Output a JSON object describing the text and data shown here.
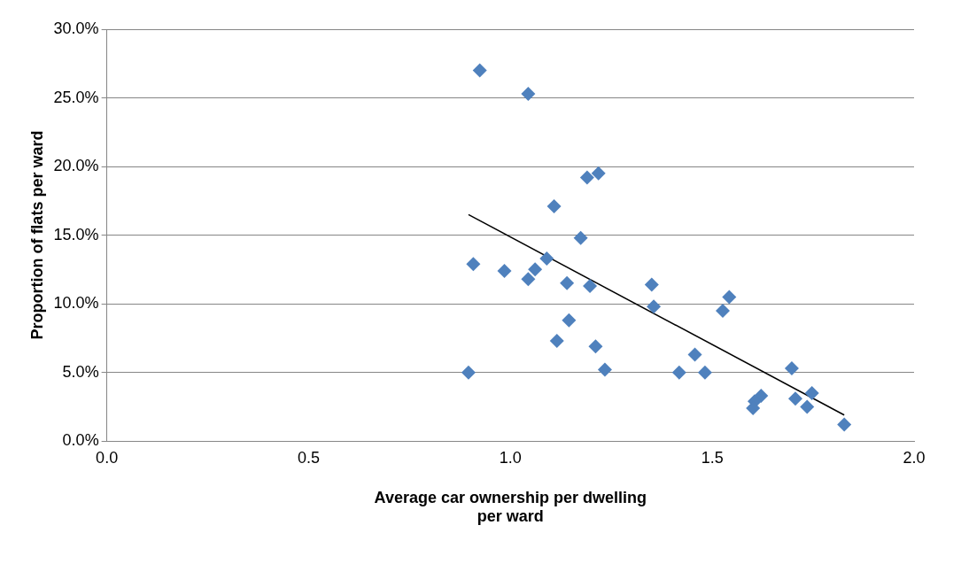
{
  "chart_data": {
    "type": "scatter",
    "xlabel": "Average car ownership per dwelling\nper ward",
    "ylabel": "Proportion of flats per ward",
    "xlim": [
      0,
      2
    ],
    "xticks": [
      {
        "value": 0,
        "label": "0.0"
      },
      {
        "value": 0.5,
        "label": "0.5"
      },
      {
        "value": 1,
        "label": "1.0"
      },
      {
        "value": 1.5,
        "label": "1.5"
      },
      {
        "value": 2,
        "label": "2.0"
      }
    ],
    "ylim": [
      0,
      30
    ],
    "yticks": [
      {
        "value": 0,
        "label": "0.0%"
      },
      {
        "value": 5,
        "label": "5.0%"
      },
      {
        "value": 10,
        "label": "10.0%"
      },
      {
        "value": 15,
        "label": "15.0%"
      },
      {
        "value": 20,
        "label": "20.0%"
      },
      {
        "value": 25,
        "label": "25.0%"
      },
      {
        "value": 30,
        "label": "30.0%"
      }
    ],
    "grid": "y",
    "marker": "diamond",
    "legend": false,
    "series": [
      {
        "type": "scatter",
        "color": "#4f81bd",
        "x": [
          0.924,
          1.044,
          1.19,
          1.218,
          1.108,
          1.174,
          1.09,
          1.061,
          1.044,
          0.908,
          0.985,
          1.14,
          1.197,
          1.35,
          1.355,
          1.542,
          1.526,
          1.145,
          1.115,
          1.211,
          1.234,
          0.896,
          1.418,
          1.482,
          1.457,
          1.697,
          1.706,
          1.747,
          1.735,
          1.621,
          1.605,
          1.601,
          1.827
        ],
        "values": [
          27.0,
          25.3,
          19.2,
          19.5,
          17.1,
          14.8,
          13.3,
          12.5,
          11.8,
          12.9,
          12.4,
          11.5,
          11.3,
          11.4,
          9.8,
          10.5,
          9.5,
          8.8,
          7.3,
          6.9,
          5.2,
          5.0,
          5.0,
          5.0,
          6.3,
          5.3,
          3.1,
          3.5,
          2.5,
          3.3,
          2.9,
          2.4,
          1.2
        ]
      },
      {
        "type": "line",
        "color": "#000000",
        "marker": "none",
        "x": [
          0.896,
          1.827
        ],
        "values": [
          16.5,
          1.9
        ]
      }
    ]
  }
}
